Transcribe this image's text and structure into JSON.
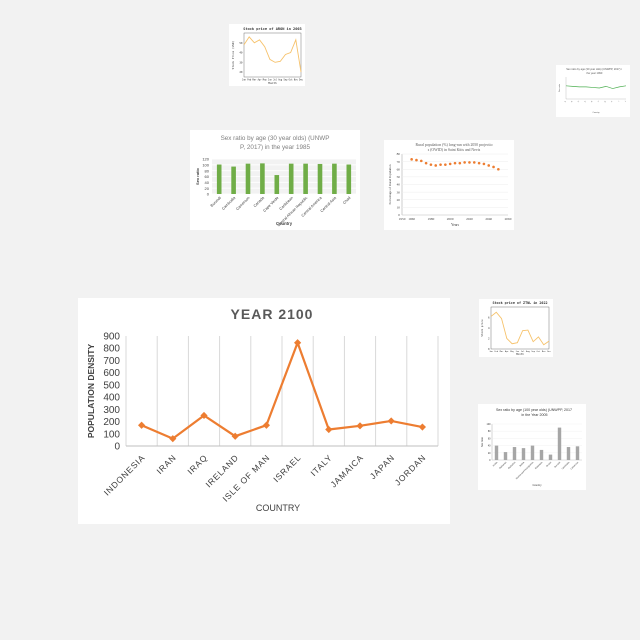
{
  "chart_data": [
    {
      "id": "main",
      "type": "line",
      "title": "YEAR 2100",
      "xlabel": "COUNTRY",
      "ylabel": "POPULATION DENSITY",
      "categories": [
        "INDONESIA",
        "IRAN",
        "IRAQ",
        "IRELAND",
        "ISLE OF MAN",
        "ISRAEL",
        "ITALY",
        "JAMAICA",
        "JAPAN",
        "JORDAN"
      ],
      "values": [
        170,
        60,
        250,
        80,
        170,
        845,
        135,
        165,
        205,
        155
      ],
      "ylim": [
        0,
        900
      ],
      "yticks": [
        0,
        100,
        200,
        300,
        400,
        500,
        600,
        700,
        800,
        900
      ],
      "color": "#ed7d31",
      "grid": "vertical"
    },
    {
      "id": "sexratio1985",
      "type": "bar",
      "title": "Sex ratio by age (30 year olds) (UNWPP, 2017) in the year 1985",
      "xlabel": "Country",
      "ylabel": "Sex ratio",
      "categories": [
        "Burundi",
        "Cambodia",
        "Cameroon",
        "Canada",
        "Cape Verde",
        "Caribbean",
        "Central African Republic",
        "Central America",
        "Central Asia",
        "Chad"
      ],
      "values": [
        101,
        94,
        104,
        105,
        65,
        104,
        104,
        103,
        104,
        101
      ],
      "ylim": [
        0,
        120
      ],
      "yticks": [
        0,
        20,
        40,
        60,
        80,
        100,
        120
      ],
      "color": "#70ad47"
    },
    {
      "id": "rural",
      "type": "scatter",
      "title": "Rural population (%) long-run with 2050 projections (OWID) in Saint Kitts and Nevis",
      "xlabel": "Years",
      "ylabel": "Percentage of Rural Population",
      "x": [
        1960,
        1965,
        1970,
        1975,
        1980,
        1985,
        1990,
        1995,
        2000,
        2005,
        2010,
        2015,
        2020,
        2025,
        2030,
        2035,
        2040,
        2045,
        2050
      ],
      "values": [
        73,
        72,
        71,
        68,
        66,
        65,
        66,
        66,
        67,
        68,
        68,
        69,
        69,
        69,
        68,
        67,
        65,
        63,
        60
      ],
      "xlim": [
        1950,
        2060
      ],
      "ylim": [
        0,
        80
      ],
      "xticks": [
        1950,
        1960,
        1980,
        2000,
        2020,
        2040,
        2060
      ],
      "yticks": [
        0,
        10,
        20,
        30,
        40,
        50,
        60,
        70,
        80
      ],
      "color": "#ed7d31"
    },
    {
      "id": "stockaron",
      "type": "line",
      "title": "Stock price of ARON in 2003",
      "xlabel": "Month",
      "ylabel": "Stock Price (USD)",
      "categories": [
        "Jan",
        "Feb",
        "Mar",
        "Apr",
        "May",
        "Jun",
        "Jul",
        "Aug",
        "Sep",
        "Oct",
        "Nov",
        "Dec"
      ],
      "values": [
        48,
        56,
        50,
        53,
        46,
        33,
        30,
        31,
        38,
        40,
        53,
        20
      ],
      "ylim": [
        15,
        60
      ],
      "color": "#f6c26b"
    },
    {
      "id": "stockztnl",
      "type": "line",
      "title": "Stock price of ZTNL in 2022",
      "xlabel": "Month",
      "ylabel": "Stock price",
      "categories": [
        "Jan",
        "Feb",
        "Mar",
        "Apr",
        "May",
        "Jun",
        "Jul",
        "Aug",
        "Sep",
        "Oct",
        "Nov",
        "Dec"
      ],
      "values": [
        6.2,
        7.0,
        5.8,
        2.0,
        1.0,
        1.2,
        3.5,
        3.6,
        1.4,
        2.3,
        0.8,
        1.5
      ],
      "ylim": [
        0,
        8
      ],
      "color": "#f6c26b"
    },
    {
      "id": "sexratio2005",
      "type": "bar",
      "title": "Sex ratio by age (100 year olds) (UNWPP, 2017) in the Year 2005",
      "xlabel": "Country",
      "ylabel": "Sex ratio",
      "categories": [
        "Aruba",
        "Bahamas",
        "Barbados",
        "Belize",
        "Bosnia and Herzegovina",
        "Botswana",
        "Brunei",
        "Burundi",
        "Cambodia",
        "Cameroon"
      ],
      "values": [
        40,
        22,
        36,
        33,
        40,
        28,
        15,
        90,
        36,
        38
      ],
      "ylim": [
        0,
        100
      ],
      "color": "#a6a6a6"
    },
    {
      "id": "sexratiosmall",
      "type": "line",
      "title": "Sex ratio by age (30 year olds) (UNWPP, 2017) in the year 1990",
      "xlabel": "Country",
      "ylabel": "Sex ratio",
      "categories": [
        "A",
        "B",
        "C",
        "D",
        "E",
        "F",
        "G",
        "H",
        "I",
        "J"
      ],
      "values": [
        104,
        103,
        102,
        102,
        101,
        100,
        103,
        99,
        102,
        104
      ],
      "ylim": [
        80,
        120
      ],
      "color": "#4caf50"
    }
  ]
}
